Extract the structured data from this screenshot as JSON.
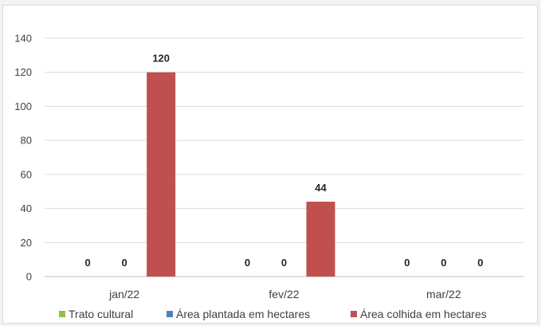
{
  "chart_data": {
    "type": "bar",
    "title": "",
    "xlabel": "",
    "ylabel": "",
    "categories": [
      "jan/22",
      "fev/22",
      "mar/22"
    ],
    "ylim": [
      0,
      140
    ],
    "yticks": [
      0,
      20,
      40,
      60,
      80,
      100,
      120,
      140
    ],
    "grid": true,
    "legend_position": "bottom",
    "series": [
      {
        "name": "Trato cultural",
        "color": "#8fbf4f",
        "values": [
          0,
          0,
          0
        ],
        "labels": [
          "0",
          "0",
          "0"
        ]
      },
      {
        "name": "Área plantada em hectares",
        "color": "#4f81bd",
        "values": [
          0,
          0,
          0
        ],
        "labels": [
          "0",
          "0",
          "0"
        ]
      },
      {
        "name": "Área colhida em hectares",
        "color": "#c0504d",
        "values": [
          120,
          44,
          0
        ],
        "labels": [
          "120",
          "44",
          "0"
        ]
      }
    ]
  }
}
